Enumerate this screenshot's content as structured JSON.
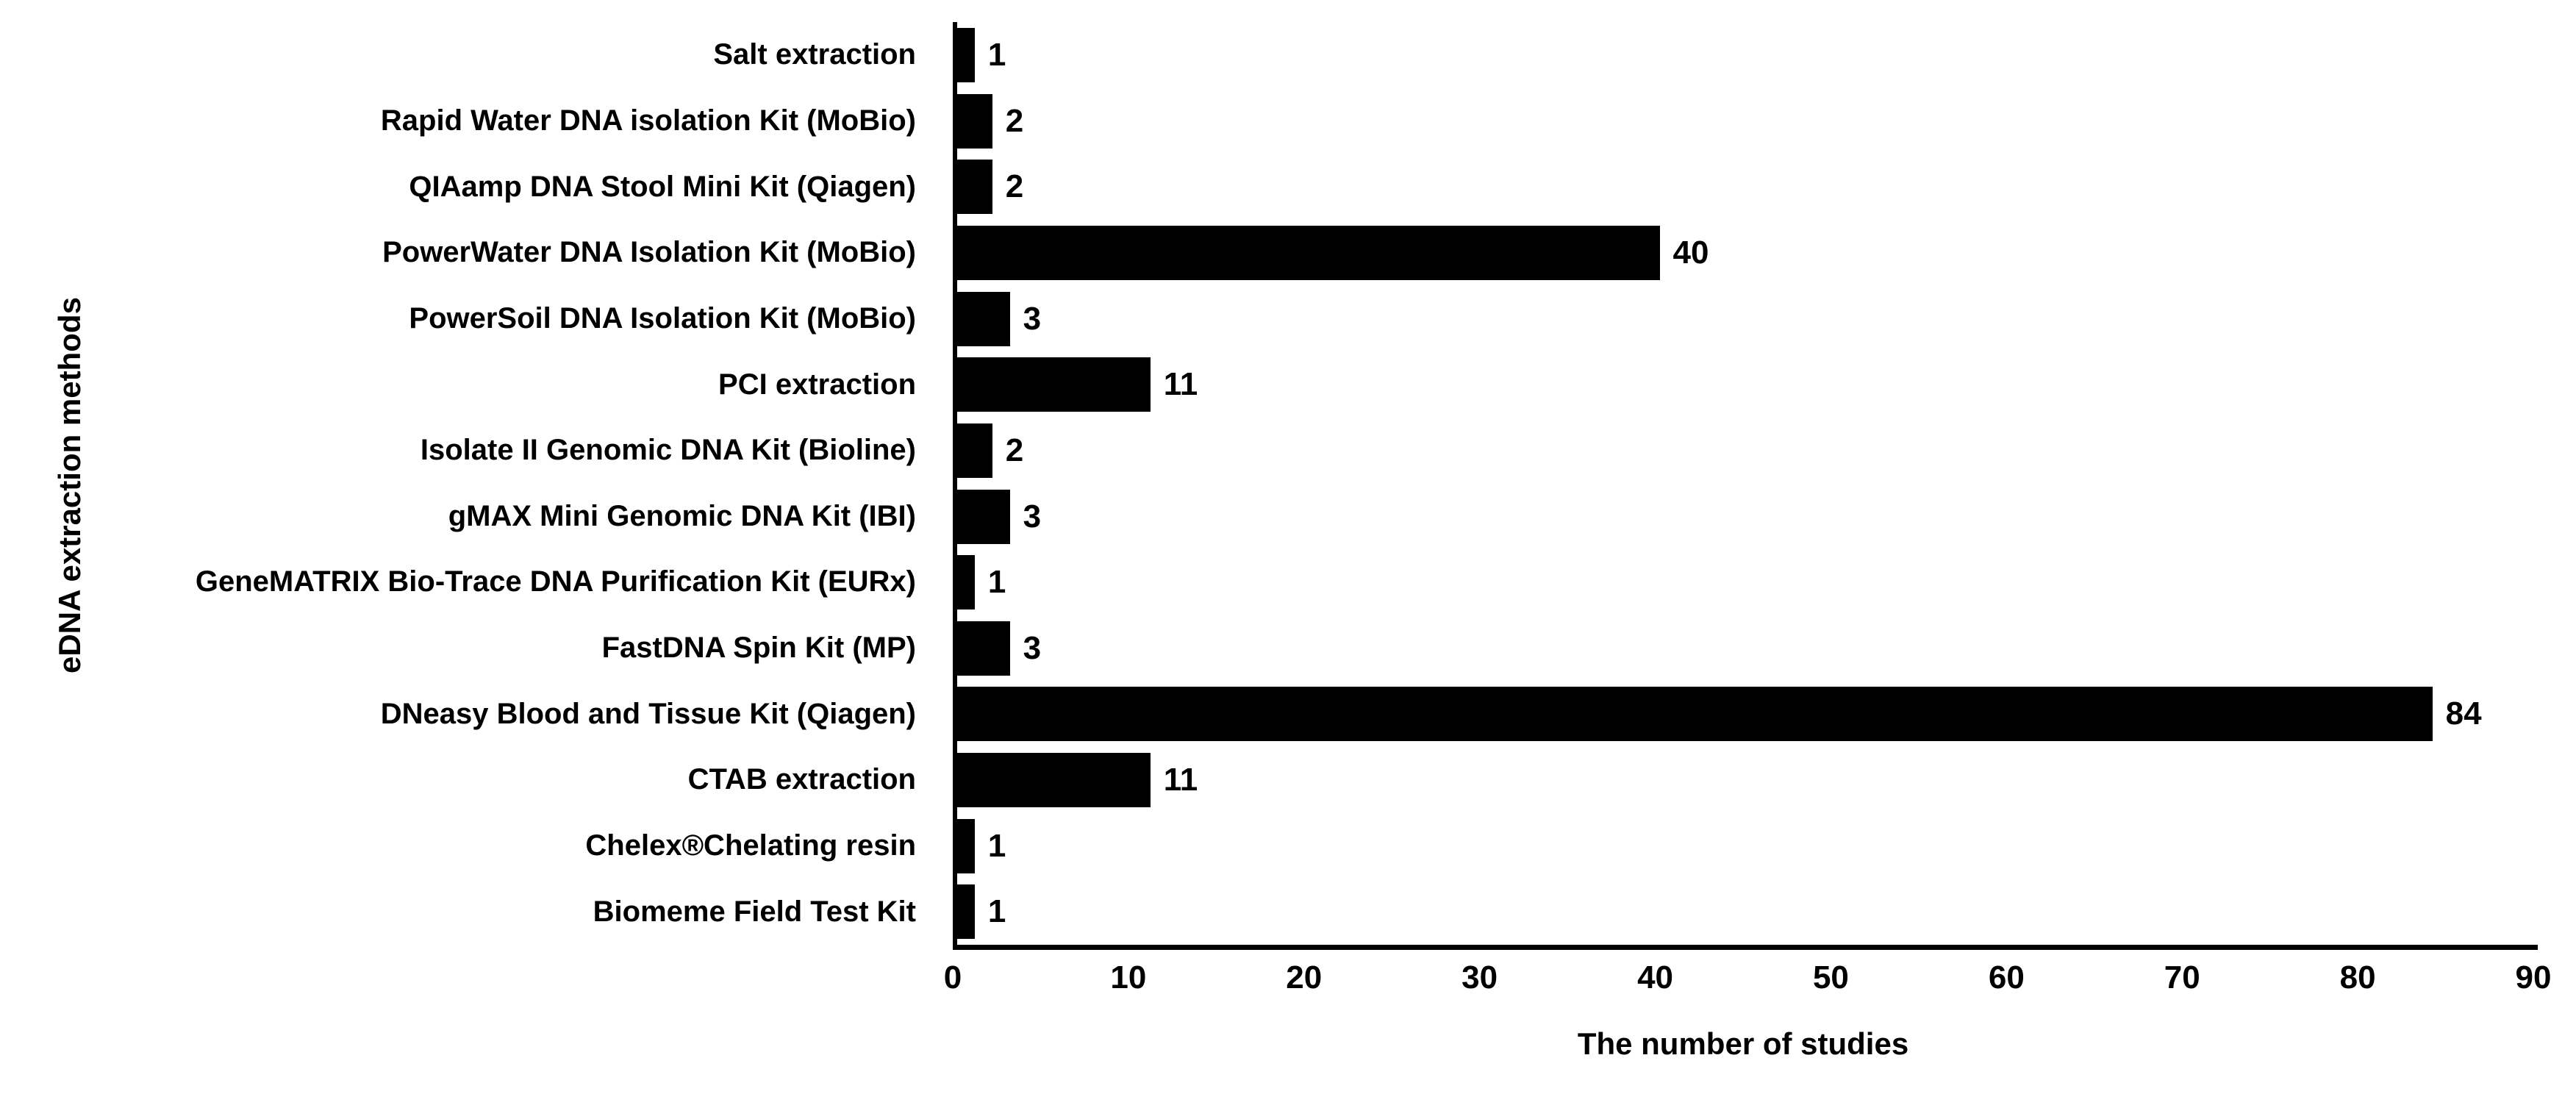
{
  "chart_data": {
    "type": "bar",
    "orientation": "horizontal",
    "title": "",
    "xlabel": "The number of studies",
    "ylabel": "eDNA extraction methods",
    "xlim": [
      0,
      90
    ],
    "xticks": [
      0,
      10,
      20,
      30,
      40,
      50,
      60,
      70,
      80,
      90
    ],
    "categories": [
      "Salt extraction",
      "Rapid Water DNA isolation Kit (MoBio)",
      "QIAamp DNA Stool Mini Kit (Qiagen)",
      "PowerWater DNA Isolation Kit (MoBio)",
      "PowerSoil DNA Isolation Kit (MoBio)",
      "PCI extraction",
      "Isolate II Genomic DNA Kit (Bioline)",
      "gMAX Mini Genomic DNA Kit (IBI)",
      "GeneMATRIX Bio-Trace DNA Purification Kit (EURx)",
      "FastDNA Spin Kit (MP)",
      "DNeasy Blood and Tissue Kit (Qiagen)",
      "CTAB extraction",
      "Chelex®Chelating resin",
      "Biomeme Field Test Kit"
    ],
    "values": [
      1,
      2,
      2,
      40,
      3,
      11,
      2,
      3,
      1,
      3,
      84,
      11,
      1,
      1
    ],
    "value_labels_shown": true,
    "bar_color": "#000000",
    "text_color": "#000000",
    "background_color": "#ffffff",
    "grid": "off",
    "legend": "none"
  }
}
